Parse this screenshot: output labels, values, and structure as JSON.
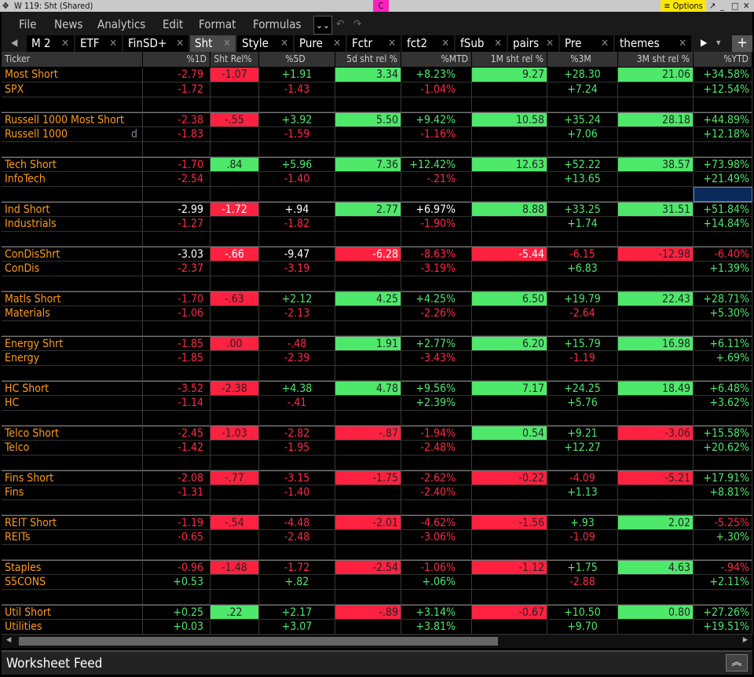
{
  "window": {
    "title": "W 119: Sht (Shared)",
    "color_tag": "C",
    "options_label": "≡ Options"
  },
  "menu": [
    "File",
    "News",
    "Analytics",
    "Edit",
    "Format",
    "Formulas"
  ],
  "tabs": [
    "M 2",
    "ETF",
    "FinSD+",
    "Sht",
    "Style",
    "Pure",
    "Fctr",
    "fct2",
    "fSub",
    "pairs",
    "Pre",
    "themes"
  ],
  "active_tab": "Sht",
  "columns": [
    "Ticker",
    "%1D",
    "Sht Rel%",
    "%5D",
    "5d sht rel %",
    "%MTD",
    "1M sht rel %",
    "%3M",
    "3M sht rel %",
    "%YTD"
  ],
  "colors": {
    "ticker": "#ff9a1a",
    "negative": "#ff2a45",
    "positive": "#4ee86b",
    "neutral": "#ffffff"
  },
  "rows": [
    {
      "ticker": "Most Short",
      "cells": [
        "-2.79",
        "-1.07",
        "+1.91",
        "3.34",
        "+8.23%",
        "9.27",
        "+28.30",
        "21.06",
        "+34.58%"
      ],
      "styles": "rRgGgGgGg"
    },
    {
      "ticker": "SPX",
      "cells": [
        "-1.72",
        "",
        "-1.43",
        "",
        "-1.04%",
        "",
        "+7.24",
        "",
        "+12.54%"
      ],
      "styles": "r-r-r-g-g"
    },
    {
      "ticker": "",
      "cells": [
        "",
        "",
        "",
        "",
        "",
        "",
        "",
        "",
        ""
      ],
      "styles": "---------"
    },
    {
      "ticker": "Russell 1000 Most Short",
      "cells": [
        "-2.38",
        "-.55",
        "+3.92",
        "5.50",
        "+9.42%",
        "10.58",
        "+35.24",
        "28.18",
        "+44.89%"
      ],
      "styles": "rRgGgGgGg"
    },
    {
      "ticker": "Russell 1000",
      "flag": "d",
      "cells": [
        "-1.83",
        "",
        "-1.59",
        "",
        "-1.16%",
        "",
        "+7.06",
        "",
        "+12.18%"
      ],
      "styles": "r-r-r-g-g"
    },
    {
      "ticker": "",
      "cells": [
        "",
        "",
        "",
        "",
        "",
        "",
        "",
        "",
        ""
      ],
      "styles": "---------"
    },
    {
      "ticker": "Tech Short",
      "cells": [
        "-1.70",
        ".84",
        "+5.96",
        "7.36",
        "+12.42%",
        "12.63",
        "+52.22",
        "38.57",
        "+73.98%"
      ],
      "styles": "rGgGgGgGg"
    },
    {
      "ticker": "InfoTech",
      "cells": [
        "-2.54",
        "",
        "-1.40",
        "",
        "-.21%",
        "",
        "+13.65",
        "",
        "+21.49%"
      ],
      "styles": "r-r-r-g-g"
    },
    {
      "ticker": "",
      "cells": [
        "",
        "",
        "",
        "",
        "",
        "",
        "",
        "",
        ""
      ],
      "styles": "--------S"
    },
    {
      "ticker": "Ind Short",
      "cells": [
        "-2.99",
        "-1.72",
        "+.94",
        "2.77",
        "+6.97%",
        "8.88",
        "+33.25",
        "31.51",
        "+51.84%"
      ],
      "styles": "wWwGwGgGg"
    },
    {
      "ticker": "Industrials",
      "cells": [
        "-1.27",
        "",
        "-1.82",
        "",
        "-1.90%",
        "",
        "+1.74",
        "",
        "+14.84%"
      ],
      "styles": "r-r-r-g-g"
    },
    {
      "ticker": "",
      "cells": [
        "",
        "",
        "",
        "",
        "",
        "",
        "",
        "",
        ""
      ],
      "styles": "---------"
    },
    {
      "ticker": "ConDisShrt",
      "cells": [
        "-3.03",
        "-.66",
        "-9.47",
        "-6.28",
        "-8.63%",
        "-5.44",
        "-6.15",
        "-12.98",
        "-6.40%"
      ],
      "styles": "wWwWrWrRr"
    },
    {
      "ticker": "ConDis",
      "cells": [
        "-2.37",
        "",
        "-3.19",
        "",
        "-3.19%",
        "",
        "+6.83",
        "",
        "+1.39%"
      ],
      "styles": "r-r-r-g-g"
    },
    {
      "ticker": "",
      "cells": [
        "",
        "",
        "",
        "",
        "",
        "",
        "",
        "",
        ""
      ],
      "styles": "---------"
    },
    {
      "ticker": "Matls Short",
      "cells": [
        "-1.70",
        "-.63",
        "+2.12",
        "4.25",
        "+4.25%",
        "6.50",
        "+19.79",
        "22.43",
        "+28.71%"
      ],
      "styles": "rRgGgGgGg"
    },
    {
      "ticker": "Materials",
      "cells": [
        "-1.06",
        "",
        "-2.13",
        "",
        "-2.26%",
        "",
        "-2.64",
        "",
        "+5.30%"
      ],
      "styles": "r-r-r-r-g"
    },
    {
      "ticker": "",
      "cells": [
        "",
        "",
        "",
        "",
        "",
        "",
        "",
        "",
        ""
      ],
      "styles": "---------"
    },
    {
      "ticker": "Energy Shrt",
      "cells": [
        "-1.85",
        ".00",
        "-.48",
        "1.91",
        "+2.77%",
        "6.20",
        "+15.79",
        "16.98",
        "+6.11%"
      ],
      "styles": "rRrGgGgGg"
    },
    {
      "ticker": "Energy",
      "cells": [
        "-1.85",
        "",
        "-2.39",
        "",
        "-3.43%",
        "",
        "-1.19",
        "",
        "+.69%"
      ],
      "styles": "r-r-r-r-g"
    },
    {
      "ticker": "",
      "cells": [
        "",
        "",
        "",
        "",
        "",
        "",
        "",
        "",
        ""
      ],
      "styles": "---------"
    },
    {
      "ticker": "HC Short",
      "cells": [
        "-3.52",
        "-2.38",
        "+4.38",
        "4.78",
        "+9.56%",
        "7.17",
        "+24.25",
        "18.49",
        "+6.48%"
      ],
      "styles": "rRgGgGgGg"
    },
    {
      "ticker": "HC",
      "cells": [
        "-1.14",
        "",
        "-.41",
        "",
        "+2.39%",
        "",
        "+5.76",
        "",
        "+3.62%"
      ],
      "styles": "r-r-g-g-g"
    },
    {
      "ticker": "",
      "cells": [
        "",
        "",
        "",
        "",
        "",
        "",
        "",
        "",
        ""
      ],
      "styles": "---------"
    },
    {
      "ticker": "Telco Short",
      "cells": [
        "-2.45",
        "-1.03",
        "-2.82",
        "-.87",
        "-1.94%",
        "0.54",
        "+9.21",
        "-3.06",
        "+15.58%"
      ],
      "styles": "rRrRrGgRg"
    },
    {
      "ticker": "Telco",
      "cells": [
        "-1.42",
        "",
        "-1.95",
        "",
        "-2.48%",
        "",
        "+12.27",
        "",
        "+20.62%"
      ],
      "styles": "r-r-r-g-g"
    },
    {
      "ticker": "",
      "cells": [
        "",
        "",
        "",
        "",
        "",
        "",
        "",
        "",
        ""
      ],
      "styles": "---------"
    },
    {
      "ticker": "Fins Short",
      "cells": [
        "-2.08",
        "-.77",
        "-3.15",
        "-1.75",
        "-2.62%",
        "-0.22",
        "-4.09",
        "-5.21",
        "+17.91%"
      ],
      "styles": "rRrRrRrRg"
    },
    {
      "ticker": "Fins",
      "cells": [
        "-1.31",
        "",
        "-1.40",
        "",
        "-2.40%",
        "",
        "+1.13",
        "",
        "+8.81%"
      ],
      "styles": "r-r-r-g-g"
    },
    {
      "ticker": "",
      "cells": [
        "",
        "",
        "",
        "",
        "",
        "",
        "",
        "",
        ""
      ],
      "styles": "---------"
    },
    {
      "ticker": "REIT Short",
      "cells": [
        "-1.19",
        "-.54",
        "-4.48",
        "-2.01",
        "-4.62%",
        "-1.56",
        "+.93",
        "2.02",
        "-5.25%"
      ],
      "styles": "rRrRrRgGr"
    },
    {
      "ticker": "REITs",
      "cells": [
        "-0.65",
        "",
        "-2.48",
        "",
        "-3.06%",
        "",
        "-1.09",
        "",
        "+.30%"
      ],
      "styles": "r-r-r-r-g"
    },
    {
      "ticker": "",
      "cells": [
        "",
        "",
        "",
        "",
        "",
        "",
        "",
        "",
        ""
      ],
      "styles": "---------"
    },
    {
      "ticker": "Staples",
      "cells": [
        "-0.96",
        "-1.48",
        "-1.72",
        "-2.54",
        "-1.06%",
        "-1.12",
        "+1.75",
        "4.63",
        "-.94%"
      ],
      "styles": "rRrRrRgGr"
    },
    {
      "ticker": "S5CONS",
      "cells": [
        "+0.53",
        "",
        "+.82",
        "",
        "+.06%",
        "",
        "-2.88",
        "",
        "+2.11%"
      ],
      "styles": "g-g-g-r-g"
    },
    {
      "ticker": "",
      "cells": [
        "",
        "",
        "",
        "",
        "",
        "",
        "",
        "",
        ""
      ],
      "styles": "---------"
    },
    {
      "ticker": "Util Short",
      "cells": [
        "+0.25",
        ".22",
        "+2.17",
        "-.89",
        "+3.14%",
        "-0.67",
        "+10.50",
        "0.80",
        "+27.26%"
      ],
      "styles": "gGgRgRgGg"
    },
    {
      "ticker": "Utilities",
      "cells": [
        "+0.03",
        "",
        "+3.07",
        "",
        "+3.81%",
        "",
        "+9.70",
        "",
        "+19.51%"
      ],
      "styles": "g-g-g-g-g"
    }
  ],
  "feed": {
    "label": "Worksheet Feed"
  }
}
